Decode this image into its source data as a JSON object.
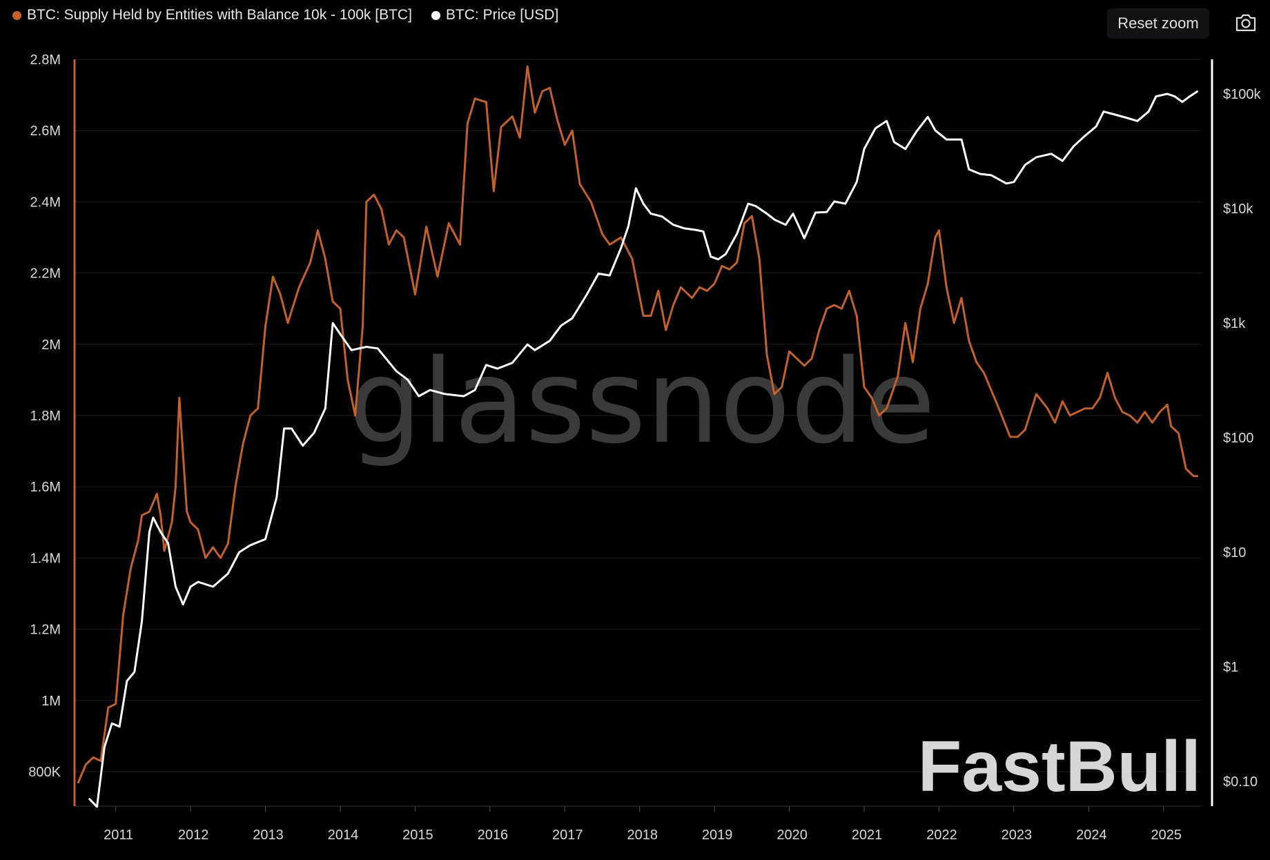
{
  "legend": {
    "series1_label": "BTC: Supply Held by Entities with Balance 10k - 100k [BTC]",
    "series2_label": "BTC: Price [USD]",
    "series1_color": "#c4602a",
    "series2_color": "#ffffff"
  },
  "toolbar": {
    "reset_label": "Reset zoom",
    "camera_icon": "camera-icon"
  },
  "watermarks": {
    "glassnode": "glassnode",
    "fastbull": "FastBull"
  },
  "chart_data": {
    "type": "line",
    "x_ticks": [
      "2011",
      "2012",
      "2013",
      "2014",
      "2015",
      "2016",
      "2017",
      "2018",
      "2019",
      "2020",
      "2021",
      "2022",
      "2023",
      "2024",
      "2025"
    ],
    "x_range": [
      2010.45,
      2025.5
    ],
    "y_left": {
      "ticks": [
        "800K",
        "1M",
        "1.2M",
        "1.4M",
        "1.6M",
        "1.8M",
        "2M",
        "2.2M",
        "2.4M",
        "2.6M",
        "2.8M"
      ],
      "range": [
        700000,
        2800000
      ],
      "scale": "linear"
    },
    "y_right": {
      "ticks": [
        "$0.10",
        "$1",
        "$10",
        "$100",
        "$1k",
        "$10k",
        "$100k"
      ],
      "range": [
        0.05,
        140000
      ],
      "scale": "log"
    },
    "series": [
      {
        "name": "BTC: Supply Held by Entities with Balance 10k - 100k [BTC]",
        "axis": "left",
        "points": [
          [
            2010.5,
            770000
          ],
          [
            2010.6,
            820000
          ],
          [
            2010.7,
            840000
          ],
          [
            2010.8,
            830000
          ],
          [
            2010.9,
            980000
          ],
          [
            2011.0,
            990000
          ],
          [
            2011.1,
            1240000
          ],
          [
            2011.2,
            1370000
          ],
          [
            2011.3,
            1450000
          ],
          [
            2011.35,
            1520000
          ],
          [
            2011.45,
            1530000
          ],
          [
            2011.55,
            1580000
          ],
          [
            2011.6,
            1520000
          ],
          [
            2011.65,
            1420000
          ],
          [
            2011.75,
            1500000
          ],
          [
            2011.8,
            1600000
          ],
          [
            2011.85,
            1850000
          ],
          [
            2011.95,
            1530000
          ],
          [
            2012.0,
            1500000
          ],
          [
            2012.1,
            1480000
          ],
          [
            2012.2,
            1400000
          ],
          [
            2012.3,
            1430000
          ],
          [
            2012.4,
            1400000
          ],
          [
            2012.5,
            1440000
          ],
          [
            2012.6,
            1600000
          ],
          [
            2012.7,
            1720000
          ],
          [
            2012.8,
            1800000
          ],
          [
            2012.9,
            1820000
          ],
          [
            2013.0,
            2050000
          ],
          [
            2013.1,
            2190000
          ],
          [
            2013.2,
            2140000
          ],
          [
            2013.3,
            2060000
          ],
          [
            2013.45,
            2160000
          ],
          [
            2013.6,
            2230000
          ],
          [
            2013.7,
            2320000
          ],
          [
            2013.8,
            2240000
          ],
          [
            2013.9,
            2120000
          ],
          [
            2014.0,
            2100000
          ],
          [
            2014.1,
            1900000
          ],
          [
            2014.2,
            1800000
          ],
          [
            2014.3,
            2050000
          ],
          [
            2014.35,
            2400000
          ],
          [
            2014.45,
            2420000
          ],
          [
            2014.55,
            2380000
          ],
          [
            2014.65,
            2280000
          ],
          [
            2014.75,
            2320000
          ],
          [
            2014.85,
            2300000
          ],
          [
            2015.0,
            2140000
          ],
          [
            2015.15,
            2330000
          ],
          [
            2015.3,
            2190000
          ],
          [
            2015.45,
            2340000
          ],
          [
            2015.6,
            2280000
          ],
          [
            2015.7,
            2620000
          ],
          [
            2015.8,
            2690000
          ],
          [
            2015.95,
            2680000
          ],
          [
            2016.05,
            2430000
          ],
          [
            2016.15,
            2610000
          ],
          [
            2016.3,
            2640000
          ],
          [
            2016.4,
            2580000
          ],
          [
            2016.5,
            2780000
          ],
          [
            2016.6,
            2650000
          ],
          [
            2016.7,
            2710000
          ],
          [
            2016.8,
            2720000
          ],
          [
            2016.9,
            2630000
          ],
          [
            2017.0,
            2560000
          ],
          [
            2017.1,
            2600000
          ],
          [
            2017.2,
            2450000
          ],
          [
            2017.35,
            2400000
          ],
          [
            2017.5,
            2310000
          ],
          [
            2017.6,
            2280000
          ],
          [
            2017.75,
            2300000
          ],
          [
            2017.9,
            2240000
          ],
          [
            2018.05,
            2080000
          ],
          [
            2018.15,
            2080000
          ],
          [
            2018.25,
            2150000
          ],
          [
            2018.35,
            2040000
          ],
          [
            2018.45,
            2110000
          ],
          [
            2018.55,
            2160000
          ],
          [
            2018.7,
            2130000
          ],
          [
            2018.8,
            2160000
          ],
          [
            2018.9,
            2150000
          ],
          [
            2019.0,
            2170000
          ],
          [
            2019.1,
            2220000
          ],
          [
            2019.2,
            2210000
          ],
          [
            2019.3,
            2230000
          ],
          [
            2019.4,
            2340000
          ],
          [
            2019.5,
            2360000
          ],
          [
            2019.6,
            2240000
          ],
          [
            2019.7,
            1970000
          ],
          [
            2019.8,
            1860000
          ],
          [
            2019.9,
            1880000
          ],
          [
            2020.0,
            1980000
          ],
          [
            2020.1,
            1960000
          ],
          [
            2020.2,
            1940000
          ],
          [
            2020.3,
            1960000
          ],
          [
            2020.4,
            2040000
          ],
          [
            2020.5,
            2100000
          ],
          [
            2020.6,
            2110000
          ],
          [
            2020.7,
            2100000
          ],
          [
            2020.8,
            2150000
          ],
          [
            2020.9,
            2080000
          ],
          [
            2021.0,
            1880000
          ],
          [
            2021.1,
            1850000
          ],
          [
            2021.2,
            1800000
          ],
          [
            2021.3,
            1820000
          ],
          [
            2021.45,
            1910000
          ],
          [
            2021.55,
            2060000
          ],
          [
            2021.65,
            1950000
          ],
          [
            2021.75,
            2100000
          ],
          [
            2021.85,
            2170000
          ],
          [
            2021.95,
            2300000
          ],
          [
            2022.0,
            2320000
          ],
          [
            2022.1,
            2160000
          ],
          [
            2022.2,
            2060000
          ],
          [
            2022.3,
            2130000
          ],
          [
            2022.4,
            2010000
          ],
          [
            2022.5,
            1950000
          ],
          [
            2022.6,
            1920000
          ],
          [
            2022.8,
            1820000
          ],
          [
            2022.95,
            1740000
          ],
          [
            2023.05,
            1740000
          ],
          [
            2023.15,
            1760000
          ],
          [
            2023.3,
            1860000
          ],
          [
            2023.45,
            1820000
          ],
          [
            2023.55,
            1780000
          ],
          [
            2023.65,
            1840000
          ],
          [
            2023.75,
            1800000
          ],
          [
            2023.85,
            1810000
          ],
          [
            2023.95,
            1820000
          ],
          [
            2024.05,
            1820000
          ],
          [
            2024.15,
            1850000
          ],
          [
            2024.25,
            1920000
          ],
          [
            2024.35,
            1850000
          ],
          [
            2024.45,
            1810000
          ],
          [
            2024.55,
            1800000
          ],
          [
            2024.65,
            1780000
          ],
          [
            2024.75,
            1810000
          ],
          [
            2024.85,
            1780000
          ],
          [
            2024.95,
            1810000
          ],
          [
            2025.05,
            1830000
          ],
          [
            2025.1,
            1770000
          ],
          [
            2025.2,
            1750000
          ],
          [
            2025.3,
            1650000
          ],
          [
            2025.4,
            1630000
          ],
          [
            2025.45,
            1630000
          ]
        ]
      },
      {
        "name": "BTC: Price [USD]",
        "axis": "right",
        "points": [
          [
            2010.65,
            0.07
          ],
          [
            2010.75,
            0.06
          ],
          [
            2010.85,
            0.2
          ],
          [
            2010.95,
            0.32
          ],
          [
            2011.05,
            0.3
          ],
          [
            2011.15,
            0.75
          ],
          [
            2011.25,
            0.9
          ],
          [
            2011.35,
            2.5
          ],
          [
            2011.45,
            15
          ],
          [
            2011.5,
            20
          ],
          [
            2011.6,
            15
          ],
          [
            2011.7,
            12
          ],
          [
            2011.8,
            5
          ],
          [
            2011.9,
            3.5
          ],
          [
            2012.0,
            5
          ],
          [
            2012.1,
            5.5
          ],
          [
            2012.3,
            5
          ],
          [
            2012.5,
            6.5
          ],
          [
            2012.65,
            10
          ],
          [
            2012.8,
            11.5
          ],
          [
            2013.0,
            13
          ],
          [
            2013.15,
            30
          ],
          [
            2013.25,
            120
          ],
          [
            2013.35,
            120
          ],
          [
            2013.5,
            85
          ],
          [
            2013.65,
            110
          ],
          [
            2013.8,
            180
          ],
          [
            2013.9,
            1000
          ],
          [
            2014.0,
            800
          ],
          [
            2014.15,
            580
          ],
          [
            2014.35,
            620
          ],
          [
            2014.5,
            600
          ],
          [
            2014.75,
            380
          ],
          [
            2014.9,
            320
          ],
          [
            2015.05,
            230
          ],
          [
            2015.2,
            260
          ],
          [
            2015.4,
            240
          ],
          [
            2015.65,
            230
          ],
          [
            2015.8,
            260
          ],
          [
            2015.95,
            430
          ],
          [
            2016.1,
            400
          ],
          [
            2016.3,
            450
          ],
          [
            2016.5,
            650
          ],
          [
            2016.6,
            580
          ],
          [
            2016.8,
            700
          ],
          [
            2016.95,
            950
          ],
          [
            2017.1,
            1100
          ],
          [
            2017.3,
            1800
          ],
          [
            2017.45,
            2700
          ],
          [
            2017.6,
            2600
          ],
          [
            2017.75,
            4500
          ],
          [
            2017.85,
            7000
          ],
          [
            2017.95,
            15000
          ],
          [
            2018.05,
            11000
          ],
          [
            2018.15,
            9000
          ],
          [
            2018.3,
            8500
          ],
          [
            2018.45,
            7200
          ],
          [
            2018.6,
            6700
          ],
          [
            2018.75,
            6500
          ],
          [
            2018.85,
            6300
          ],
          [
            2018.95,
            3800
          ],
          [
            2019.05,
            3600
          ],
          [
            2019.15,
            4000
          ],
          [
            2019.3,
            6000
          ],
          [
            2019.45,
            11000
          ],
          [
            2019.55,
            10500
          ],
          [
            2019.7,
            9000
          ],
          [
            2019.8,
            8000
          ],
          [
            2019.95,
            7200
          ],
          [
            2020.05,
            9000
          ],
          [
            2020.2,
            5500
          ],
          [
            2020.35,
            9200
          ],
          [
            2020.5,
            9300
          ],
          [
            2020.6,
            11500
          ],
          [
            2020.75,
            11000
          ],
          [
            2020.9,
            17000
          ],
          [
            2021.0,
            33000
          ],
          [
            2021.15,
            50000
          ],
          [
            2021.3,
            58000
          ],
          [
            2021.4,
            38000
          ],
          [
            2021.55,
            33000
          ],
          [
            2021.7,
            47000
          ],
          [
            2021.85,
            63000
          ],
          [
            2021.95,
            48000
          ],
          [
            2022.1,
            40000
          ],
          [
            2022.3,
            40000
          ],
          [
            2022.4,
            22000
          ],
          [
            2022.55,
            20000
          ],
          [
            2022.7,
            19500
          ],
          [
            2022.9,
            16500
          ],
          [
            2023.0,
            17000
          ],
          [
            2023.15,
            24000
          ],
          [
            2023.3,
            28000
          ],
          [
            2023.5,
            30000
          ],
          [
            2023.65,
            26000
          ],
          [
            2023.8,
            35000
          ],
          [
            2023.95,
            43000
          ],
          [
            2024.1,
            52000
          ],
          [
            2024.2,
            70000
          ],
          [
            2024.35,
            66000
          ],
          [
            2024.5,
            62000
          ],
          [
            2024.65,
            58000
          ],
          [
            2024.8,
            70000
          ],
          [
            2024.9,
            95000
          ],
          [
            2025.05,
            100000
          ],
          [
            2025.15,
            95000
          ],
          [
            2025.25,
            85000
          ],
          [
            2025.35,
            95000
          ],
          [
            2025.45,
            105000
          ]
        ]
      }
    ]
  }
}
